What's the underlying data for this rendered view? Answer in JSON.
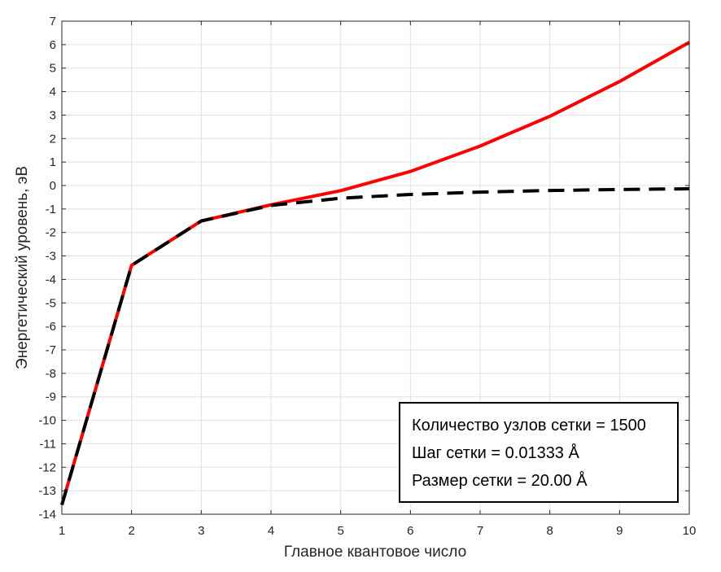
{
  "colors": {
    "series_red": "#ff0000",
    "series_black": "#000000",
    "grid": "#e0e0e0",
    "axis": "#262626"
  },
  "chart_data": {
    "type": "line",
    "title": "",
    "xlabel": "Главное квантовое число",
    "ylabel": "Энергетический уровень, эВ",
    "xlim": [
      1,
      10
    ],
    "ylim": [
      -14,
      7
    ],
    "grid": true,
    "x_ticks": [
      "1",
      "2",
      "3",
      "4",
      "5",
      "6",
      "7",
      "8",
      "9",
      "10"
    ],
    "y_ticks": [
      "-14",
      "-13",
      "-12",
      "-11",
      "-10",
      "-9",
      "-8",
      "-7",
      "-6",
      "-5",
      "-4",
      "-3",
      "-2",
      "-1",
      "0",
      "1",
      "2",
      "3",
      "4",
      "5",
      "6",
      "7"
    ],
    "x": [
      1,
      2,
      3,
      4,
      5,
      6,
      7,
      8,
      9,
      10
    ],
    "series": [
      {
        "color": "#ff0000",
        "style": "solid",
        "values": [
          -13.6,
          -3.4,
          -1.51,
          -0.82,
          -0.22,
          0.6,
          1.68,
          2.95,
          4.43,
          6.1
        ]
      },
      {
        "color": "#000000",
        "style": "dashed",
        "values": [
          -13.6,
          -3.4,
          -1.51,
          -0.85,
          -0.54,
          -0.38,
          -0.28,
          -0.21,
          -0.17,
          -0.14
        ]
      }
    ],
    "annotation": {
      "position": "bottom-right",
      "lines": [
        "Количество узлов сетки = 1500",
        "Шаг сетки = 0.01333 Å",
        "Размер сетки = 20.00 Å"
      ]
    }
  }
}
